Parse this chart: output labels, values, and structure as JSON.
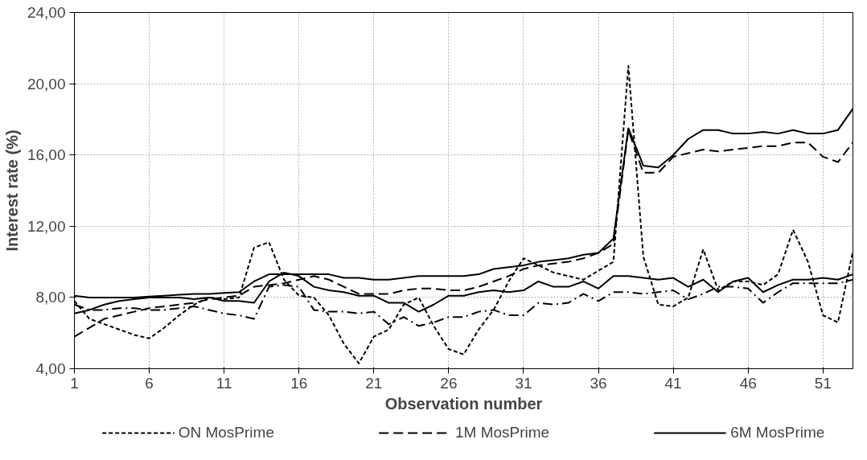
{
  "chart_data": {
    "type": "line",
    "xlabel": "Observation number",
    "ylabel": "Interest rate (%)",
    "x": [
      1,
      2,
      3,
      4,
      5,
      6,
      7,
      8,
      9,
      10,
      11,
      12,
      13,
      14,
      15,
      16,
      17,
      18,
      19,
      20,
      21,
      22,
      23,
      24,
      25,
      26,
      27,
      28,
      29,
      30,
      31,
      32,
      33,
      34,
      35,
      36,
      37,
      38,
      39,
      40,
      41,
      42,
      43,
      44,
      45,
      46,
      47,
      48,
      49,
      50,
      51,
      52,
      53
    ],
    "xlim": [
      1,
      53
    ],
    "xticks": [
      1,
      6,
      11,
      16,
      21,
      26,
      31,
      36,
      41,
      46,
      51
    ],
    "ylim": [
      4,
      24
    ],
    "yticks": [
      {
        "value": 4,
        "label": "4,00"
      },
      {
        "value": 8,
        "label": "8,00"
      },
      {
        "value": 12,
        "label": "12,00"
      },
      {
        "value": 16,
        "label": "16,00"
      },
      {
        "value": 20,
        "label": "20,00"
      },
      {
        "value": 24,
        "label": "24,00"
      }
    ],
    "grid": true,
    "legend": "bottom",
    "marker": "none",
    "series": [
      {
        "name": "ON MosPrime",
        "color": "#000000",
        "line_style": "dotted",
        "values": [
          7.8,
          6.8,
          6.5,
          6.2,
          5.9,
          5.7,
          6.3,
          7.0,
          7.6,
          8.0,
          7.9,
          8.0,
          10.8,
          11.1,
          9.0,
          8.1,
          8.0,
          7.0,
          5.4,
          4.3,
          5.8,
          6.2,
          7.6,
          8.0,
          6.4,
          5.1,
          4.8,
          6.2,
          7.3,
          8.9,
          10.2,
          9.8,
          9.4,
          9.2,
          9.0,
          9.5,
          10.0,
          21.0,
          10.3,
          7.6,
          7.5,
          8.0,
          10.7,
          8.4,
          8.9,
          8.9,
          8.7,
          9.3,
          11.8,
          10.0,
          7.0,
          6.6,
          10.6
        ]
      },
      {
        "name": "1M MosPrime",
        "color": "#000000",
        "line_style": "dashed",
        "values": [
          5.8,
          6.3,
          6.8,
          7.0,
          7.2,
          7.4,
          7.5,
          7.6,
          7.7,
          7.9,
          8.0,
          8.1,
          8.6,
          8.7,
          8.8,
          9.0,
          9.2,
          9.0,
          8.6,
          8.2,
          8.2,
          8.2,
          8.4,
          8.5,
          8.5,
          8.4,
          8.4,
          8.6,
          8.9,
          9.2,
          9.6,
          9.8,
          9.9,
          10.0,
          10.2,
          10.5,
          11.0,
          17.4,
          15.0,
          15.0,
          15.9,
          16.1,
          16.3,
          16.2,
          16.3,
          16.4,
          16.5,
          16.5,
          16.7,
          16.7,
          15.9,
          15.6,
          16.7
        ]
      },
      {
        "name": "6M MosPrime",
        "color": "#000000",
        "line_style": "solid",
        "values": [
          8.1,
          8.0,
          8.0,
          8.0,
          8.0,
          8.05,
          8.1,
          8.15,
          8.2,
          8.2,
          8.25,
          8.3,
          8.9,
          9.3,
          9.3,
          9.3,
          9.3,
          9.3,
          9.1,
          9.1,
          9.0,
          9.0,
          9.1,
          9.2,
          9.2,
          9.2,
          9.2,
          9.3,
          9.6,
          9.7,
          9.8,
          10.0,
          10.1,
          10.2,
          10.4,
          10.5,
          11.3,
          17.5,
          15.4,
          15.3,
          16.0,
          16.9,
          17.4,
          17.4,
          17.2,
          17.2,
          17.3,
          17.2,
          17.4,
          17.2,
          17.2,
          17.4,
          18.6
        ]
      },
      {
        "color": "#000000",
        "line_style": "solid",
        "values": [
          7.1,
          7.3,
          7.6,
          7.8,
          7.9,
          8.0,
          8.0,
          8.0,
          7.9,
          8.0,
          7.8,
          7.8,
          7.7,
          8.9,
          9.4,
          9.2,
          8.6,
          8.4,
          8.3,
          8.1,
          8.1,
          7.7,
          7.7,
          7.2,
          7.6,
          8.1,
          8.1,
          8.3,
          8.4,
          8.3,
          8.4,
          8.9,
          8.6,
          8.6,
          8.9,
          8.5,
          9.2,
          9.2,
          9.1,
          9.0,
          9.1,
          8.6,
          9.0,
          8.3,
          8.9,
          9.1,
          8.3,
          8.7,
          9.0,
          9.0,
          9.1,
          9.0,
          9.3
        ]
      },
      {
        "color": "#000000",
        "line_style": "dashdot",
        "values": [
          7.6,
          7.3,
          7.3,
          7.4,
          7.4,
          7.3,
          7.3,
          7.4,
          7.5,
          7.3,
          7.1,
          7.0,
          6.8,
          8.6,
          8.7,
          8.6,
          7.3,
          7.2,
          7.2,
          7.1,
          7.2,
          6.5,
          6.9,
          6.4,
          6.6,
          6.9,
          6.9,
          7.2,
          7.3,
          7.0,
          7.0,
          7.7,
          7.6,
          7.7,
          8.2,
          7.8,
          8.3,
          8.3,
          8.2,
          8.3,
          8.4,
          7.9,
          8.2,
          8.6,
          8.6,
          8.5,
          7.7,
          8.3,
          8.8,
          8.8,
          8.8,
          8.8,
          9.0
        ]
      }
    ]
  }
}
